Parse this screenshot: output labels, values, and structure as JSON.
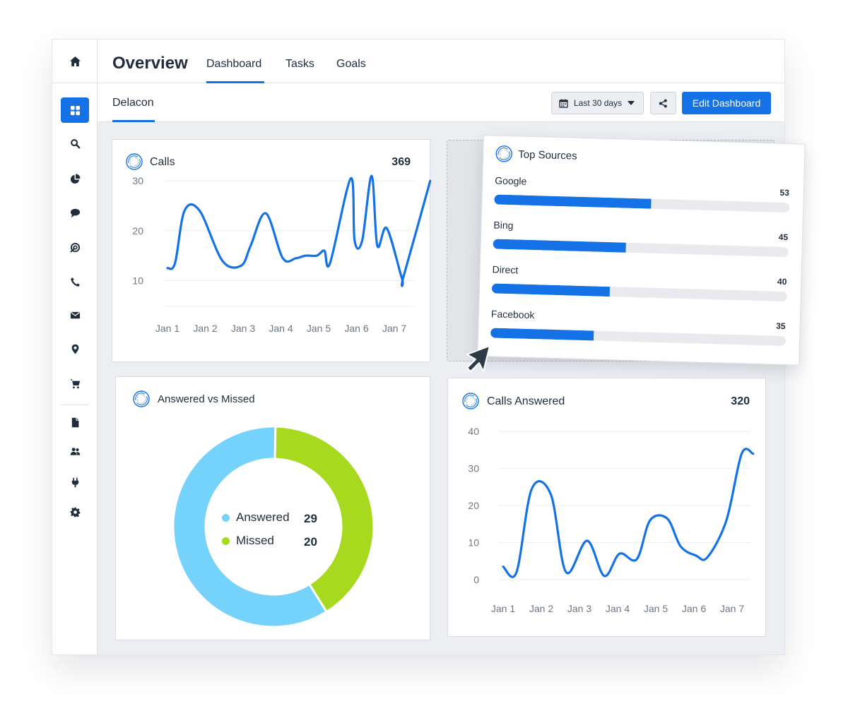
{
  "header": {
    "title": "Overview",
    "tabs": [
      {
        "label": "Dashboard",
        "active": true
      },
      {
        "label": "Tasks",
        "active": false
      },
      {
        "label": "Goals",
        "active": false
      }
    ]
  },
  "subheader": {
    "tab": "Delacon",
    "date_range": "Last 30 days",
    "edit_label": "Edit Dashboard"
  },
  "sidebar": {
    "items": [
      {
        "icon": "home-icon"
      },
      {
        "icon": "dashboard-icon",
        "active": true
      },
      {
        "icon": "search-icon"
      },
      {
        "icon": "pie-chart-icon"
      },
      {
        "icon": "chat-icon"
      },
      {
        "icon": "target-icon"
      },
      {
        "icon": "phone-icon"
      },
      {
        "icon": "mail-icon"
      },
      {
        "icon": "location-pin-icon"
      },
      {
        "icon": "cart-icon"
      },
      {
        "icon": "document-icon"
      },
      {
        "icon": "users-icon"
      },
      {
        "icon": "plug-icon"
      },
      {
        "icon": "settings-icon"
      }
    ]
  },
  "calls_card": {
    "title": "Calls",
    "total": "369",
    "chart_data": {
      "type": "line",
      "categories": [
        "Jan 1",
        "Jan 2",
        "Jan 3",
        "Jan 4",
        "Jan 5",
        "Jan 6",
        "Jan 7"
      ],
      "yticks": [
        10,
        20,
        30
      ],
      "ylim": [
        2,
        32
      ],
      "series": [
        {
          "x": [
            0,
            0.2,
            0.45,
            0.85,
            1.45,
            1.95,
            2.2,
            2.6,
            3.05,
            3.4,
            3.65,
            3.95,
            4.15,
            4.3,
            4.85,
            4.95,
            5.15,
            5.4,
            5.55,
            5.8,
            6.2,
            6.25,
            6.95
          ],
          "y": [
            12.5,
            13.5,
            24,
            24,
            14,
            13,
            17,
            23.5,
            14.5,
            14.5,
            15,
            15,
            16,
            13.5,
            30.5,
            18,
            18,
            31,
            17,
            20.5,
            10.5,
            11,
            30
          ],
          "color": "#1472e6"
        }
      ]
    }
  },
  "top_sources_card": {
    "title": "Top Sources",
    "chart_data": {
      "type": "bar",
      "max": 100,
      "categories": [
        "Google",
        "Bing",
        "Direct",
        "Facebook"
      ],
      "values": [
        53,
        45,
        40,
        35
      ],
      "color": "#1472e6"
    }
  },
  "answered_card": {
    "title": "Answered vs Missed",
    "chart_data": {
      "type": "pie",
      "labels": [
        "Answered",
        "Missed"
      ],
      "values": [
        29,
        20
      ],
      "colors": [
        "#75d2fb",
        "#a7da1e"
      ]
    }
  },
  "calls_answered_card": {
    "title": "Calls Answered",
    "total": "320",
    "chart_data": {
      "type": "line",
      "categories": [
        "Jan 1",
        "Jan 2",
        "Jan 3",
        "Jan 4",
        "Jan 5",
        "Jan 6",
        "Jan 7"
      ],
      "yticks": [
        0,
        10,
        20,
        30,
        40
      ],
      "ylim": [
        0,
        45
      ],
      "series": [
        {
          "x": [
            0,
            0.35,
            0.75,
            1.25,
            1.65,
            2.2,
            2.65,
            3.05,
            3.5,
            3.85,
            4.3,
            4.65,
            5.05,
            5.35,
            5.85,
            6.25,
            6.55
          ],
          "y": [
            3.5,
            2,
            24.5,
            23,
            2,
            10.5,
            1,
            7,
            5.5,
            16,
            16.5,
            9,
            6.5,
            6,
            16,
            34,
            34
          ],
          "color": "#1472e6"
        }
      ]
    }
  }
}
